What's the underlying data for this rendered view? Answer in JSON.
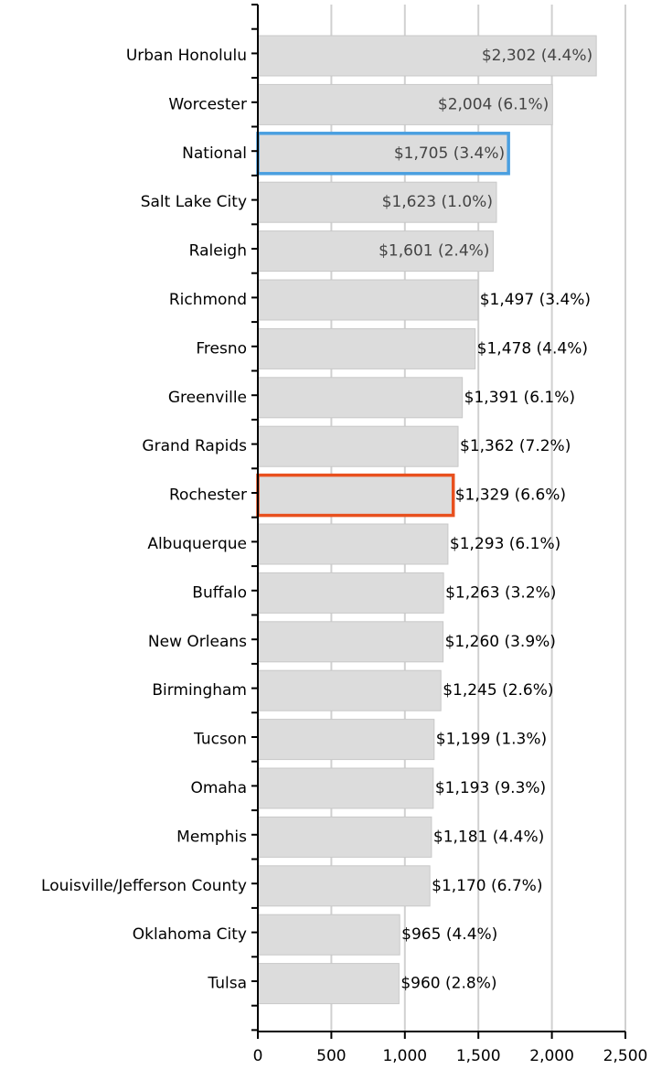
{
  "chart_data": {
    "type": "barh",
    "categories": [
      "Urban Honolulu",
      "Worcester",
      "National",
      "Salt Lake City",
      "Raleigh",
      "Richmond",
      "Fresno",
      "Greenville",
      "Grand Rapids",
      "Rochester",
      "Albuquerque",
      "Buffalo",
      "New Orleans",
      "Birmingham",
      "Tucson",
      "Omaha",
      "Memphis",
      "Louisville/Jefferson County",
      "Oklahoma City",
      "Tulsa"
    ],
    "values": [
      2302,
      2004,
      1705,
      1623,
      1601,
      1497,
      1478,
      1391,
      1362,
      1329,
      1293,
      1263,
      1260,
      1245,
      1199,
      1193,
      1181,
      1170,
      965,
      960
    ],
    "value_labels": [
      "$2,302 (4.4%)",
      "$2,004 (6.1%)",
      "$1,705 (3.4%)",
      "$1,623 (1.0%)",
      "$1,601 (2.4%)",
      "$1,497 (3.4%)",
      "$1,478 (4.4%)",
      "$1,391 (6.1%)",
      "$1,362 (7.2%)",
      "$1,329 (6.6%)",
      "$1,293 (6.1%)",
      "$1,263 (3.2%)",
      "$1,260 (3.9%)",
      "$1,245 (2.6%)",
      "$1,199 (1.3%)",
      "$1,193 (9.3%)",
      "$1,181 (4.4%)",
      "$1,170 (6.7%)",
      "$965 (4.4%)",
      "$960 (2.8%)"
    ],
    "color": "#dcdcdc",
    "outlines": [
      null,
      null,
      "#4a9fe0",
      null,
      null,
      null,
      null,
      null,
      null,
      "#e8501e",
      null,
      null,
      null,
      null,
      null,
      null,
      null,
      null,
      null,
      null
    ],
    "xlim": [
      0,
      2500
    ],
    "xticks": [
      0,
      500,
      {
        "value": 1000,
        "label": "1,000"
      },
      {
        "value": 1500,
        "label": "1,500"
      },
      {
        "value": 2000,
        "label": "2,000"
      },
      {
        "value": 2500,
        "label": "2,500"
      }
    ],
    "grid": true
  }
}
